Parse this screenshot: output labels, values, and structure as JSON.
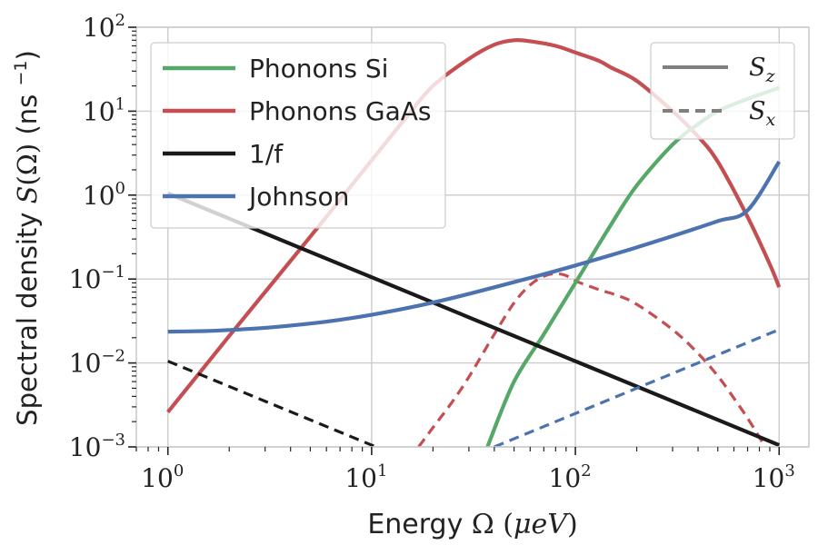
{
  "chart_data": {
    "type": "line",
    "xscale": "log",
    "yscale": "log",
    "xlim": [
      0.7,
      1400
    ],
    "ylim": [
      0.001,
      100
    ],
    "grid": true,
    "xlabel": {
      "prefix": "Energy ",
      "symbol": "Ω",
      "unit_open": " (",
      "unit_mu": "μ",
      "unit_e": "e",
      "unit_V": "V",
      "unit_close": ")"
    },
    "ylabel": {
      "prefix": "Spectral density ",
      "S": "S",
      "paren_open": "(",
      "omega": "Ω",
      "paren_close": ")",
      "unit": " (ns ",
      "exp": "−1",
      "unit_close": ")"
    },
    "xticks": [
      {
        "value": 1,
        "base": "10",
        "exp": "0"
      },
      {
        "value": 10,
        "base": "10",
        "exp": "1"
      },
      {
        "value": 100,
        "base": "10",
        "exp": "2"
      },
      {
        "value": 1000,
        "base": "10",
        "exp": "3"
      }
    ],
    "yticks": [
      {
        "value": 0.001,
        "base": "10",
        "exp": "−3"
      },
      {
        "value": 0.01,
        "base": "10",
        "exp": "−2"
      },
      {
        "value": 0.1,
        "base": "10",
        "exp": "−1"
      },
      {
        "value": 1,
        "base": "10",
        "exp": "0"
      },
      {
        "value": 10,
        "base": "10",
        "exp": "1"
      },
      {
        "value": 100,
        "base": "10",
        "exp": "2"
      }
    ],
    "series": [
      {
        "name": "Phonons GaAs",
        "component": "Sz",
        "color": "#c44e52",
        "dash": "solid",
        "x": [
          1,
          1.5,
          2,
          3,
          5,
          7,
          10,
          15,
          20,
          30,
          40,
          50,
          60,
          80,
          100,
          130,
          150,
          200,
          300,
          400,
          500,
          700,
          900,
          1000
        ],
        "y": [
          0.0026,
          0.0088,
          0.021,
          0.07,
          0.32,
          0.88,
          2.6,
          8.8,
          20,
          42,
          62,
          70,
          68,
          60,
          50,
          40,
          33,
          23,
          10,
          5,
          2.5,
          0.55,
          0.15,
          0.08
        ]
      },
      {
        "name": "Phonons GaAs",
        "component": "Sx",
        "color": "#c44e52",
        "dash": "dashed",
        "x": [
          17,
          20,
          25,
          30,
          40,
          50,
          60,
          70,
          80,
          90,
          100,
          130,
          160,
          200,
          300,
          400,
          500,
          600,
          700,
          800,
          850
        ],
        "y": [
          0.001,
          0.0017,
          0.0035,
          0.0068,
          0.022,
          0.052,
          0.085,
          0.108,
          0.116,
          0.11,
          0.095,
          0.075,
          0.064,
          0.05,
          0.025,
          0.013,
          0.007,
          0.0038,
          0.0022,
          0.0013,
          0.001
        ]
      },
      {
        "name": "Phonons Si",
        "component": "Sz",
        "color": "#55a868",
        "dash": "solid",
        "x": [
          37,
          50,
          70,
          100,
          150,
          200,
          300,
          400,
          500,
          700,
          1000
        ],
        "y": [
          0.001,
          0.006,
          0.022,
          0.09,
          0.45,
          1.3,
          4.0,
          7.0,
          10,
          14,
          19
        ]
      },
      {
        "name": "1/f",
        "component": "Sz",
        "color": "#1a1a1a",
        "dash": "solid",
        "x": [
          1,
          10,
          100,
          1000
        ],
        "y": [
          1.05,
          0.105,
          0.0105,
          0.00105
        ]
      },
      {
        "name": "1/f",
        "component": "Sx",
        "color": "#1a1a1a",
        "dash": "dashed",
        "x": [
          1,
          10.5
        ],
        "y": [
          0.0105,
          0.001
        ]
      },
      {
        "name": "Johnson",
        "component": "Sz",
        "color": "#4c72b0",
        "dash": "solid",
        "x": [
          1,
          1.5,
          2,
          3,
          5,
          7,
          10,
          15,
          20,
          30,
          50,
          70,
          100,
          150,
          200,
          300,
          500,
          700,
          1000
        ],
        "y": [
          0.0236,
          0.024,
          0.0247,
          0.0262,
          0.0295,
          0.0327,
          0.0375,
          0.0452,
          0.0525,
          0.0665,
          0.092,
          0.114,
          0.145,
          0.193,
          0.238,
          0.325,
          0.49,
          0.66,
          2.5
        ]
      },
      {
        "name": "Johnson",
        "component": "Sx",
        "color": "#4c72b0",
        "dash": "dashed",
        "x": [
          40,
          1000
        ],
        "y": [
          0.001,
          0.025
        ]
      }
    ],
    "legend_main": {
      "placement": "top-left",
      "entries": [
        {
          "label": "Phonons Si",
          "color": "#55a868"
        },
        {
          "label": "Phonons GaAs",
          "color": "#c44e52"
        },
        {
          "label": "1/f",
          "color": "#1a1a1a"
        },
        {
          "label": "Johnson",
          "color": "#4c72b0"
        }
      ]
    },
    "legend_style": {
      "placement": "top-right",
      "entries": [
        {
          "S": "S",
          "sub": "z",
          "dash": "solid",
          "color": "#7f7f7f"
        },
        {
          "S": "S",
          "sub": "x",
          "dash": "dashed",
          "color": "#7f7f7f"
        }
      ]
    }
  }
}
